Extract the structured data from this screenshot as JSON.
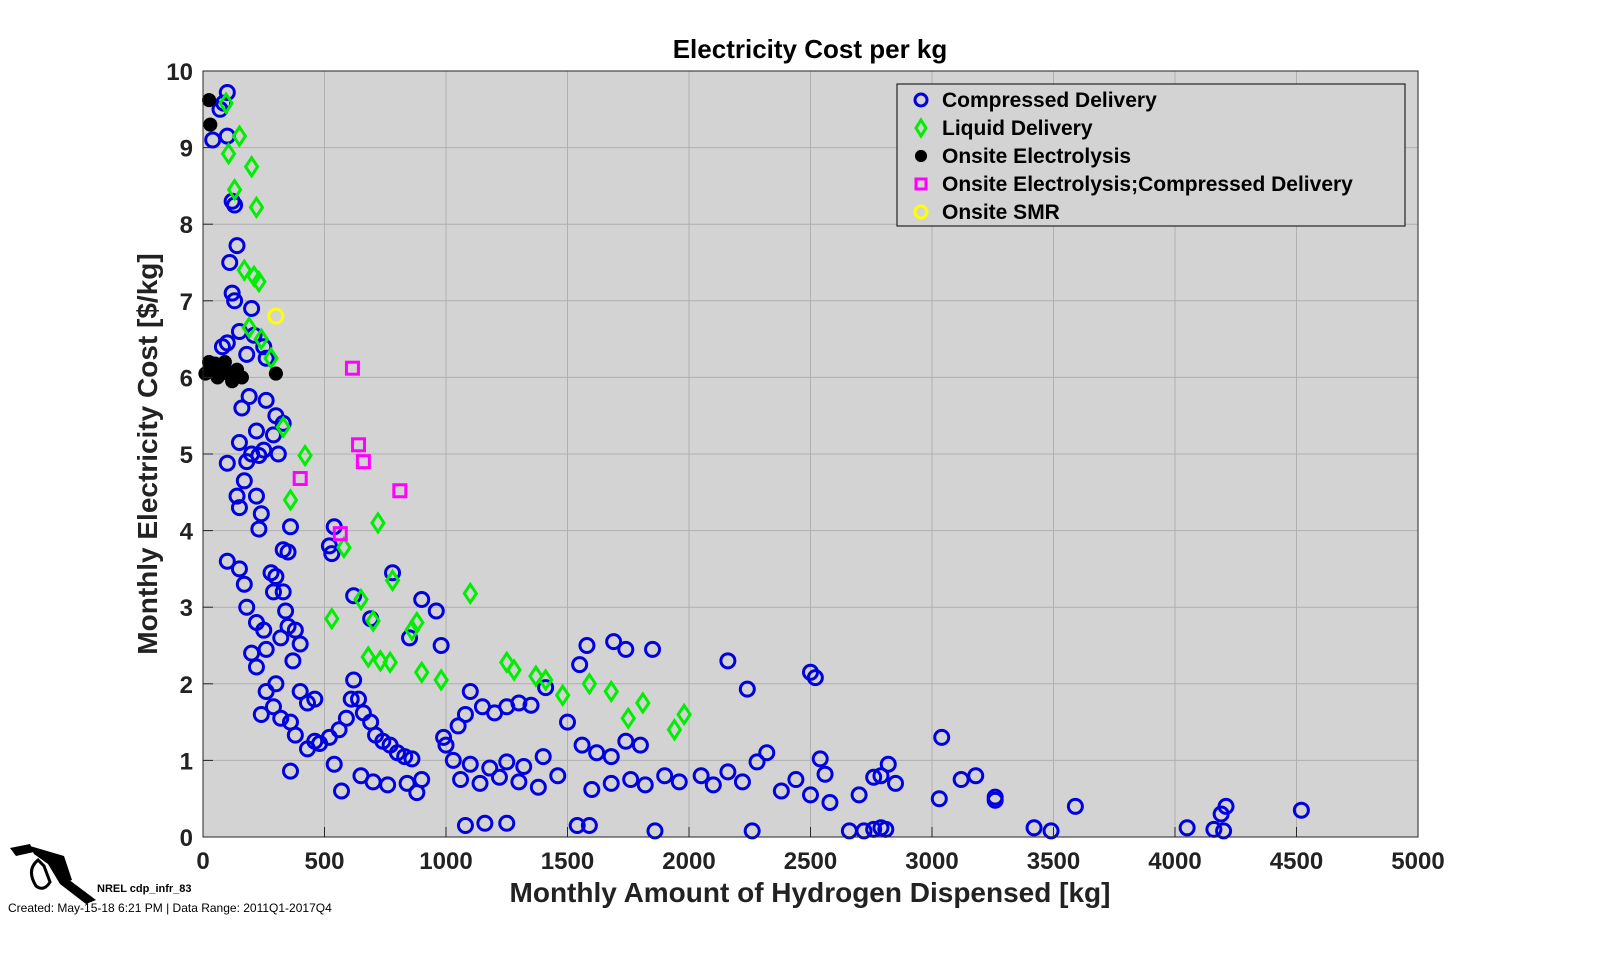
{
  "chart_data": {
    "type": "scatter",
    "title": "Electricity Cost per kg",
    "xlabel": "Monthly Amount of Hydrogen Dispensed [kg]",
    "ylabel": "Monthly Electricity Cost [$/kg]",
    "xlim": [
      0,
      5000
    ],
    "ylim": [
      0,
      10
    ],
    "xticks": [
      0,
      500,
      1000,
      1500,
      2000,
      2500,
      3000,
      3500,
      4000,
      4500,
      5000
    ],
    "yticks": [
      0,
      1,
      2,
      3,
      4,
      5,
      6,
      7,
      8,
      9,
      10
    ],
    "grid": true,
    "legend_position": "top-right",
    "series": [
      {
        "name": "Compressed Delivery",
        "marker": "circle",
        "color": "#0000e0",
        "points": [
          [
            100,
            9.72
          ],
          [
            85,
            9.58
          ],
          [
            70,
            9.5
          ],
          [
            40,
            9.1
          ],
          [
            100,
            9.15
          ],
          [
            120,
            8.3
          ],
          [
            130,
            8.25
          ],
          [
            110,
            7.5
          ],
          [
            140,
            7.72
          ],
          [
            120,
            7.1
          ],
          [
            130,
            7.0
          ],
          [
            200,
            6.9
          ],
          [
            150,
            6.6
          ],
          [
            100,
            6.45
          ],
          [
            210,
            6.55
          ],
          [
            250,
            6.4
          ],
          [
            260,
            6.25
          ],
          [
            80,
            6.4
          ],
          [
            180,
            6.3
          ],
          [
            130,
            6.05
          ],
          [
            190,
            5.75
          ],
          [
            160,
            5.6
          ],
          [
            260,
            5.7
          ],
          [
            300,
            5.5
          ],
          [
            330,
            5.4
          ],
          [
            220,
            5.3
          ],
          [
            150,
            5.15
          ],
          [
            290,
            5.25
          ],
          [
            200,
            5.0
          ],
          [
            230,
            4.98
          ],
          [
            180,
            4.9
          ],
          [
            100,
            4.88
          ],
          [
            250,
            5.05
          ],
          [
            310,
            5.0
          ],
          [
            170,
            4.65
          ],
          [
            140,
            4.45
          ],
          [
            220,
            4.45
          ],
          [
            150,
            4.3
          ],
          [
            240,
            4.22
          ],
          [
            230,
            4.02
          ],
          [
            360,
            4.05
          ],
          [
            540,
            4.05
          ],
          [
            520,
            3.8
          ],
          [
            530,
            3.7
          ],
          [
            330,
            3.75
          ],
          [
            350,
            3.72
          ],
          [
            100,
            3.6
          ],
          [
            150,
            3.5
          ],
          [
            170,
            3.3
          ],
          [
            280,
            3.45
          ],
          [
            300,
            3.4
          ],
          [
            290,
            3.2
          ],
          [
            330,
            3.2
          ],
          [
            340,
            2.95
          ],
          [
            350,
            2.75
          ],
          [
            180,
            3.0
          ],
          [
            220,
            2.8
          ],
          [
            250,
            2.7
          ],
          [
            380,
            2.7
          ],
          [
            400,
            2.52
          ],
          [
            260,
            2.45
          ],
          [
            320,
            2.6
          ],
          [
            370,
            2.3
          ],
          [
            220,
            2.22
          ],
          [
            200,
            2.4
          ],
          [
            260,
            1.9
          ],
          [
            300,
            2.0
          ],
          [
            290,
            1.7
          ],
          [
            240,
            1.6
          ],
          [
            320,
            1.55
          ],
          [
            360,
            1.5
          ],
          [
            400,
            1.9
          ],
          [
            430,
            1.75
          ],
          [
            460,
            1.8
          ],
          [
            380,
            1.33
          ],
          [
            430,
            1.15
          ],
          [
            460,
            1.25
          ],
          [
            360,
            0.86
          ],
          [
            480,
            1.22
          ],
          [
            520,
            1.3
          ],
          [
            540,
            0.95
          ],
          [
            560,
            1.4
          ],
          [
            590,
            1.55
          ],
          [
            610,
            1.8
          ],
          [
            620,
            2.05
          ],
          [
            640,
            1.8
          ],
          [
            660,
            1.62
          ],
          [
            690,
            1.5
          ],
          [
            710,
            1.33
          ],
          [
            740,
            1.25
          ],
          [
            770,
            1.2
          ],
          [
            800,
            1.1
          ],
          [
            830,
            1.05
          ],
          [
            860,
            1.02
          ],
          [
            570,
            0.6
          ],
          [
            650,
            0.8
          ],
          [
            700,
            0.72
          ],
          [
            760,
            0.68
          ],
          [
            840,
            0.7
          ],
          [
            880,
            0.58
          ],
          [
            900,
            0.75
          ],
          [
            620,
            3.15
          ],
          [
            690,
            2.85
          ],
          [
            780,
            3.45
          ],
          [
            900,
            3.1
          ],
          [
            960,
            2.95
          ],
          [
            980,
            2.5
          ],
          [
            850,
            2.6
          ],
          [
            990,
            1.3
          ],
          [
            1000,
            1.2
          ],
          [
            1050,
            1.45
          ],
          [
            1080,
            1.6
          ],
          [
            1100,
            1.9
          ],
          [
            1150,
            1.7
          ],
          [
            1200,
            1.62
          ],
          [
            1250,
            1.7
          ],
          [
            1300,
            1.75
          ],
          [
            1350,
            1.72
          ],
          [
            1410,
            1.95
          ],
          [
            1030,
            1.0
          ],
          [
            1100,
            0.95
          ],
          [
            1180,
            0.9
          ],
          [
            1250,
            0.98
          ],
          [
            1320,
            0.92
          ],
          [
            1400,
            1.05
          ],
          [
            1060,
            0.75
          ],
          [
            1140,
            0.7
          ],
          [
            1220,
            0.78
          ],
          [
            1300,
            0.72
          ],
          [
            1380,
            0.65
          ],
          [
            1460,
            0.8
          ],
          [
            1500,
            1.5
          ],
          [
            1560,
            1.2
          ],
          [
            1620,
            1.1
          ],
          [
            1680,
            1.05
          ],
          [
            1740,
            1.25
          ],
          [
            1800,
            1.2
          ],
          [
            1580,
            2.5
          ],
          [
            1690,
            2.55
          ],
          [
            1740,
            2.45
          ],
          [
            1850,
            2.45
          ],
          [
            1550,
            2.25
          ],
          [
            1600,
            0.62
          ],
          [
            1680,
            0.7
          ],
          [
            1760,
            0.75
          ],
          [
            1820,
            0.68
          ],
          [
            1900,
            0.8
          ],
          [
            1960,
            0.72
          ],
          [
            2050,
            0.8
          ],
          [
            2100,
            0.68
          ],
          [
            2160,
            0.85
          ],
          [
            2220,
            0.72
          ],
          [
            2280,
            0.98
          ],
          [
            2320,
            1.1
          ],
          [
            2160,
            2.3
          ],
          [
            2240,
            1.93
          ],
          [
            2500,
            2.15
          ],
          [
            2520,
            2.08
          ],
          [
            2380,
            0.6
          ],
          [
            2440,
            0.75
          ],
          [
            2500,
            0.55
          ],
          [
            2540,
            1.02
          ],
          [
            2560,
            0.82
          ],
          [
            2580,
            0.45
          ],
          [
            2700,
            0.55
          ],
          [
            2760,
            0.78
          ],
          [
            2790,
            0.8
          ],
          [
            2820,
            0.95
          ],
          [
            2850,
            0.7
          ],
          [
            3040,
            1.3
          ],
          [
            3030,
            0.5
          ],
          [
            3120,
            0.75
          ],
          [
            3180,
            0.8
          ],
          [
            3260,
            0.52
          ],
          [
            3260,
            0.48
          ],
          [
            3590,
            0.4
          ],
          [
            4210,
            0.4
          ],
          [
            4190,
            0.3
          ],
          [
            4520,
            0.35
          ],
          [
            1080,
            0.15
          ],
          [
            1160,
            0.18
          ],
          [
            1250,
            0.18
          ],
          [
            1540,
            0.15
          ],
          [
            1590,
            0.15
          ],
          [
            1860,
            0.08
          ],
          [
            2260,
            0.08
          ],
          [
            2660,
            0.08
          ],
          [
            2720,
            0.08
          ],
          [
            2760,
            0.1
          ],
          [
            2790,
            0.12
          ],
          [
            2810,
            0.1
          ],
          [
            3420,
            0.12
          ],
          [
            3490,
            0.08
          ],
          [
            4050,
            0.12
          ],
          [
            4160,
            0.1
          ],
          [
            4200,
            0.08
          ]
        ]
      },
      {
        "name": "Liquid Delivery",
        "marker": "diamond",
        "color": "#00ee00",
        "points": [
          [
            95,
            9.58
          ],
          [
            150,
            9.15
          ],
          [
            105,
            8.92
          ],
          [
            200,
            8.75
          ],
          [
            130,
            8.45
          ],
          [
            220,
            8.22
          ],
          [
            170,
            7.4
          ],
          [
            210,
            7.32
          ],
          [
            230,
            7.25
          ],
          [
            190,
            6.65
          ],
          [
            240,
            6.5
          ],
          [
            280,
            6.25
          ],
          [
            330,
            5.35
          ],
          [
            420,
            4.98
          ],
          [
            360,
            4.4
          ],
          [
            580,
            3.78
          ],
          [
            720,
            4.1
          ],
          [
            530,
            2.85
          ],
          [
            650,
            3.1
          ],
          [
            700,
            2.82
          ],
          [
            780,
            3.35
          ],
          [
            860,
            2.7
          ],
          [
            880,
            2.8
          ],
          [
            1100,
            3.18
          ],
          [
            680,
            2.35
          ],
          [
            730,
            2.3
          ],
          [
            770,
            2.28
          ],
          [
            900,
            2.15
          ],
          [
            980,
            2.05
          ],
          [
            1250,
            2.28
          ],
          [
            1280,
            2.18
          ],
          [
            1370,
            2.1
          ],
          [
            1410,
            2.05
          ],
          [
            1480,
            1.85
          ],
          [
            1590,
            2.0
          ],
          [
            1680,
            1.9
          ],
          [
            1750,
            1.55
          ],
          [
            1810,
            1.75
          ],
          [
            1940,
            1.4
          ],
          [
            1980,
            1.6
          ]
        ]
      },
      {
        "name": "Onsite Electrolysis",
        "marker": "asterisk",
        "color": "#000000",
        "points": [
          [
            25,
            9.62
          ],
          [
            30,
            9.3
          ],
          [
            10,
            6.05
          ],
          [
            25,
            6.2
          ],
          [
            40,
            6.1
          ],
          [
            60,
            6.0
          ],
          [
            80,
            6.15
          ],
          [
            100,
            6.05
          ],
          [
            120,
            5.95
          ],
          [
            140,
            6.1
          ],
          [
            160,
            6.0
          ],
          [
            90,
            6.2
          ],
          [
            50,
            6.18
          ],
          [
            130,
            6.05
          ],
          [
            300,
            6.05
          ]
        ]
      },
      {
        "name": "Onsite Electrolysis;Compressed Delivery",
        "marker": "square",
        "color": "#ff00ff",
        "points": [
          [
            615,
            6.12
          ],
          [
            640,
            5.12
          ],
          [
            660,
            4.9
          ],
          [
            400,
            4.68
          ],
          [
            810,
            4.52
          ],
          [
            565,
            3.96
          ]
        ]
      },
      {
        "name": "Onsite SMR",
        "marker": "circle",
        "color": "#ffff00",
        "points": [
          [
            300,
            6.8
          ]
        ]
      }
    ]
  },
  "footer": {
    "id_label": "NREL cdp_infr_83",
    "created_label": "Created: May-15-18  6:21 PM | Data Range: 2011Q1-2017Q4"
  }
}
